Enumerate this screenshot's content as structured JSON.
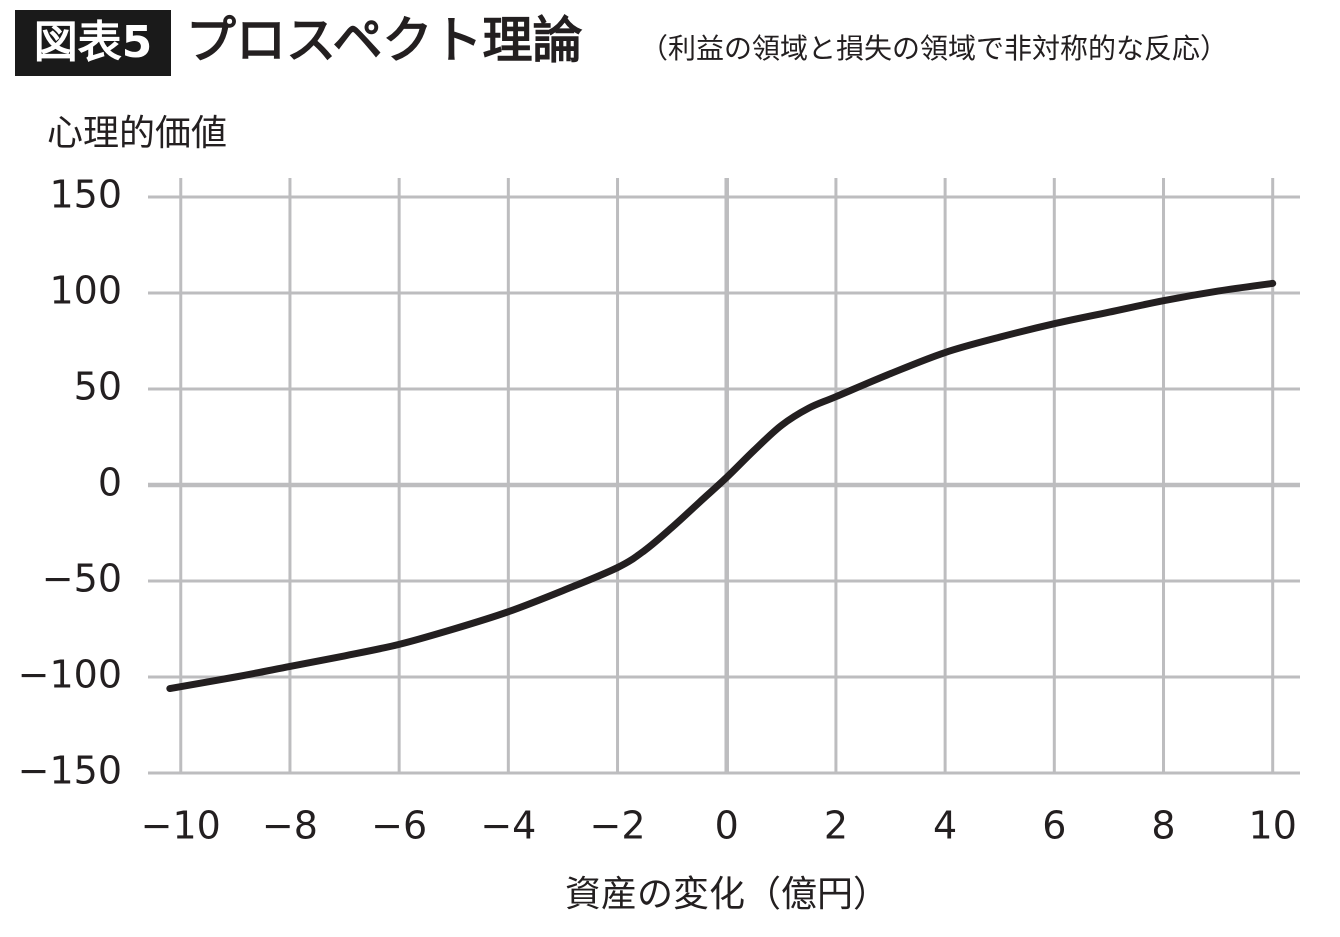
{
  "chart_data": {
    "type": "line",
    "badge": "図表5",
    "title": "プロスペクト理論",
    "subtitle": "（利益の領域と損失の領域で非対称的な反応）",
    "y_label": "心理的価値",
    "x_label": "資産の変化（億円）",
    "grid": true,
    "xlim": [
      -10.6,
      10.5
    ],
    "ylim": [
      -150,
      150
    ],
    "xticks": [
      {
        "value": -10,
        "label": "−10"
      },
      {
        "value": -8,
        "label": "−8"
      },
      {
        "value": -6,
        "label": "−6"
      },
      {
        "value": -4,
        "label": "−4"
      },
      {
        "value": -2,
        "label": "−2"
      },
      0,
      2,
      4,
      6,
      8,
      10
    ],
    "yticks": [
      150,
      100,
      50,
      0,
      {
        "value": -50,
        "label": "−50"
      },
      {
        "value": -100,
        "label": "−100"
      },
      {
        "value": -150,
        "label": "−150"
      }
    ],
    "x": [
      -10.2,
      -9,
      -8,
      -7,
      -6,
      -5,
      -4,
      -3,
      -2,
      -1.5,
      -1,
      -0.5,
      0,
      0.5,
      1,
      1.5,
      2,
      3,
      4,
      5,
      6,
      7,
      8,
      9,
      10
    ],
    "series": [
      {
        "color": "#231f20",
        "values": [
          -106,
          -100,
          -94.5,
          -89,
          -83,
          -75,
          -66,
          -55,
          -43,
          -34,
          -22,
          -9,
          4,
          18,
          31,
          40,
          46,
          58,
          69,
          77,
          84,
          90,
          96,
          101,
          105
        ]
      }
    ]
  }
}
